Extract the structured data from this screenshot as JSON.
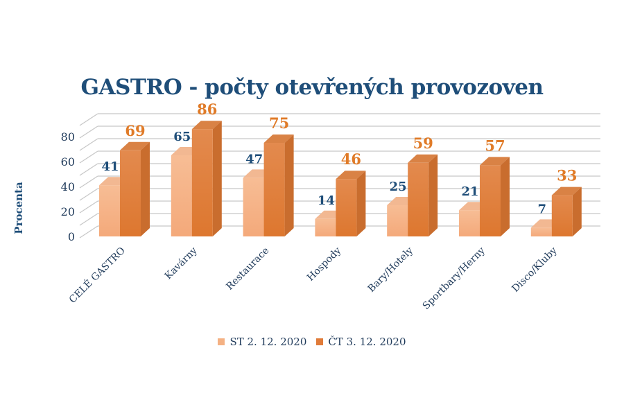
{
  "chart_data": {
    "type": "bar",
    "title": "GASTRO - počty otevřených provozoven",
    "xlabel": "",
    "ylabel": "Procenta",
    "ylim": [
      0,
      90
    ],
    "yticks": [
      0,
      20,
      40,
      60,
      80
    ],
    "grid": true,
    "gridStep": 10,
    "legend_position": "bottom",
    "categories": [
      "CELÉ GASTRO",
      "Kavárny",
      "Restaurace",
      "Hospody",
      "Bary/Hotely",
      "Sportbary/Herny",
      "Disco/Kluby"
    ],
    "series": [
      {
        "name": "ST 2. 12. 2020",
        "values": [
          41,
          65,
          47,
          14,
          25,
          21,
          7
        ],
        "color": "#f4b183",
        "label_color": "#1f4e79"
      },
      {
        "name": "ČT 3. 12. 2020",
        "values": [
          69,
          86,
          75,
          46,
          59,
          57,
          33
        ],
        "color": "#e07b39",
        "label_color": "#e07b28"
      }
    ]
  },
  "colors": {
    "title": "#1f4e79",
    "axis_text": "#1f3a5a",
    "gridline": "#c8c8c8"
  }
}
